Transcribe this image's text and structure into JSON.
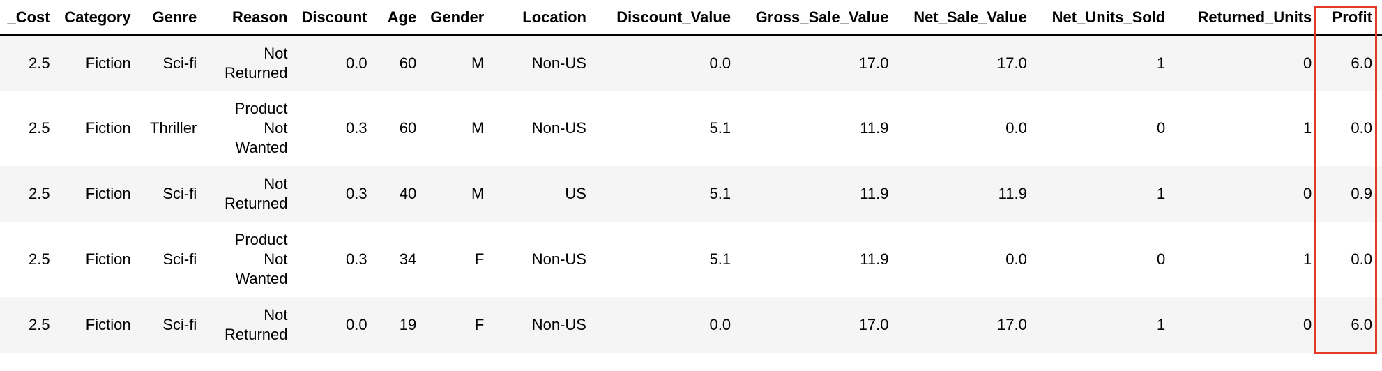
{
  "columns": [
    "_Cost",
    "Category",
    "Genre",
    "Reason",
    "Discount",
    "Age",
    "Gender",
    "Location",
    "Discount_Value",
    "Gross_Sale_Value",
    "Net_Sale_Value",
    "Net_Units_Sold",
    "Returned_Units",
    "Profit"
  ],
  "rows": [
    {
      "reason": [
        "Not",
        "Returned"
      ],
      "cells": [
        "2.5",
        "Fiction",
        "Sci-fi",
        "0.0",
        "60",
        "M",
        "Non-US",
        "0.0",
        "17.0",
        "17.0",
        "1",
        "0",
        "6.0"
      ]
    },
    {
      "reason": [
        "Product",
        "Not",
        "Wanted"
      ],
      "cells": [
        "2.5",
        "Fiction",
        "Thriller",
        "0.3",
        "60",
        "M",
        "Non-US",
        "5.1",
        "11.9",
        "0.0",
        "0",
        "1",
        "0.0"
      ]
    },
    {
      "reason": [
        "Not",
        "Returned"
      ],
      "cells": [
        "2.5",
        "Fiction",
        "Sci-fi",
        "0.3",
        "40",
        "M",
        "US",
        "5.1",
        "11.9",
        "11.9",
        "1",
        "0",
        "0.9"
      ]
    },
    {
      "reason": [
        "Product",
        "Not",
        "Wanted"
      ],
      "cells": [
        "2.5",
        "Fiction",
        "Sci-fi",
        "0.3",
        "34",
        "F",
        "Non-US",
        "5.1",
        "11.9",
        "0.0",
        "0",
        "1",
        "0.0"
      ]
    },
    {
      "reason": [
        "Not",
        "Returned"
      ],
      "cells": [
        "2.5",
        "Fiction",
        "Sci-fi",
        "0.0",
        "19",
        "F",
        "Non-US",
        "0.0",
        "17.0",
        "17.0",
        "1",
        "0",
        "6.0"
      ]
    }
  ],
  "highlighted_column": "Profit",
  "colors": {
    "highlight_border": "#e23a2a",
    "stripe": "#f5f5f5",
    "background": "#ffffff"
  }
}
